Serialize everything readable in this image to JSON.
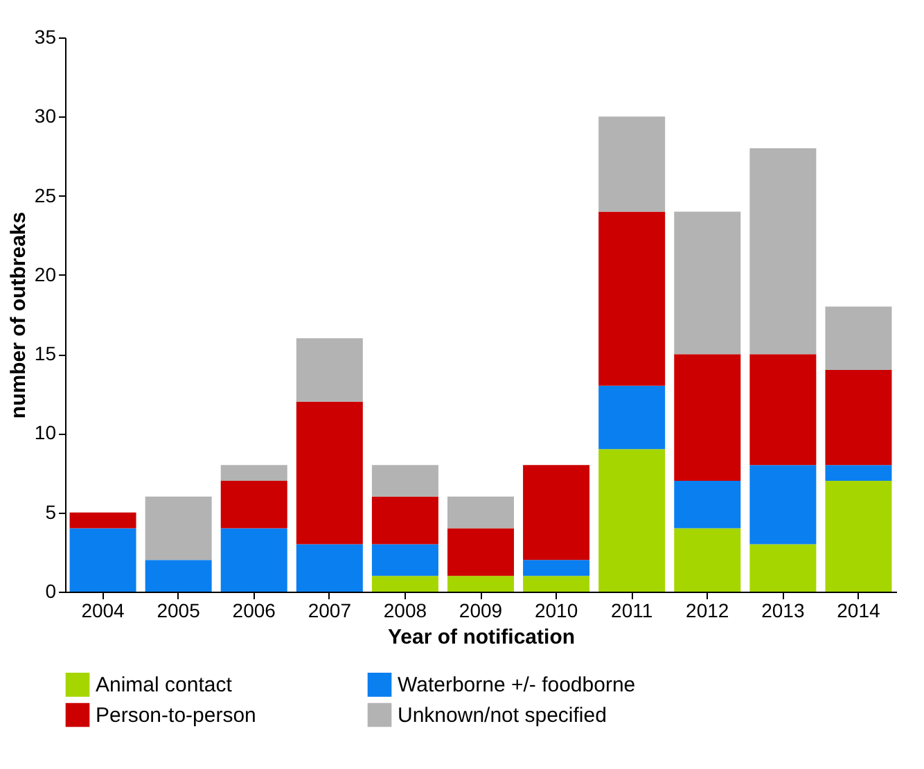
{
  "chart_data": {
    "type": "bar",
    "stacked": true,
    "xlabel": "Year of notification",
    "ylabel": "number of outbreaks",
    "categories": [
      "2004",
      "2005",
      "2006",
      "2007",
      "2008",
      "2009",
      "2010",
      "2011",
      "2012",
      "2013",
      "2014"
    ],
    "series": [
      {
        "name": "Animal contact",
        "color": "#a6d600",
        "values": [
          0,
          0,
          0,
          0,
          1,
          1,
          1,
          9,
          4,
          3,
          7
        ]
      },
      {
        "name": "Waterborne +/- foodborne",
        "color": "#0a7ff0",
        "values": [
          4,
          2,
          4,
          3,
          2,
          0,
          1,
          4,
          3,
          5,
          1
        ]
      },
      {
        "name": "Person-to-person",
        "color": "#cc0000",
        "values": [
          1,
          0,
          3,
          9,
          3,
          3,
          6,
          11,
          8,
          7,
          6
        ]
      },
      {
        "name": "Unknown/not specified",
        "color": "#b3b3b3",
        "values": [
          0,
          4,
          1,
          4,
          2,
          2,
          0,
          6,
          9,
          13,
          4
        ]
      }
    ],
    "ylim": [
      0,
      35
    ],
    "yticks": [
      0,
      5,
      10,
      15,
      20,
      25,
      30,
      35
    ],
    "grid": false,
    "legend": "bottom"
  }
}
